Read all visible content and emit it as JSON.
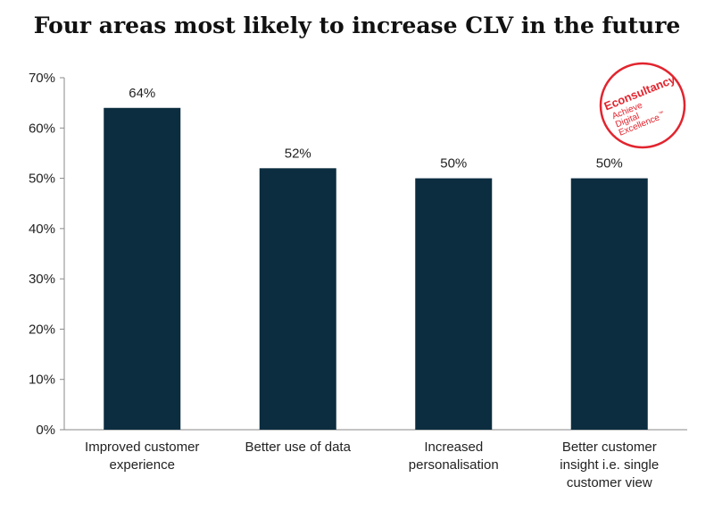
{
  "chart_data": {
    "type": "bar",
    "title": "Four areas most likely to increase CLV in the future",
    "categories": [
      [
        "Improved customer",
        "experience"
      ],
      [
        "Better use of data"
      ],
      [
        "Increased",
        "personalisation"
      ],
      [
        "Better customer",
        "insight i.e. single",
        "customer view"
      ]
    ],
    "values": [
      64,
      52,
      50,
      50
    ],
    "data_labels": [
      "64%",
      "52%",
      "50%",
      "50%"
    ],
    "ylim": [
      0,
      70
    ],
    "yticks": [
      0,
      10,
      20,
      30,
      40,
      50,
      60,
      70
    ],
    "ytick_labels": [
      "0%",
      "10%",
      "20%",
      "30%",
      "40%",
      "50%",
      "60%",
      "70%"
    ],
    "xlabel": "",
    "ylabel": "",
    "bar_color": "#0c2d40",
    "grid": false
  },
  "logo": {
    "brand": "Econsultancy",
    "tagline_1": "Achieve",
    "tagline_2": "Digital",
    "tagline_3": "Excellence",
    "tm": "™",
    "color": "#e2242e"
  }
}
